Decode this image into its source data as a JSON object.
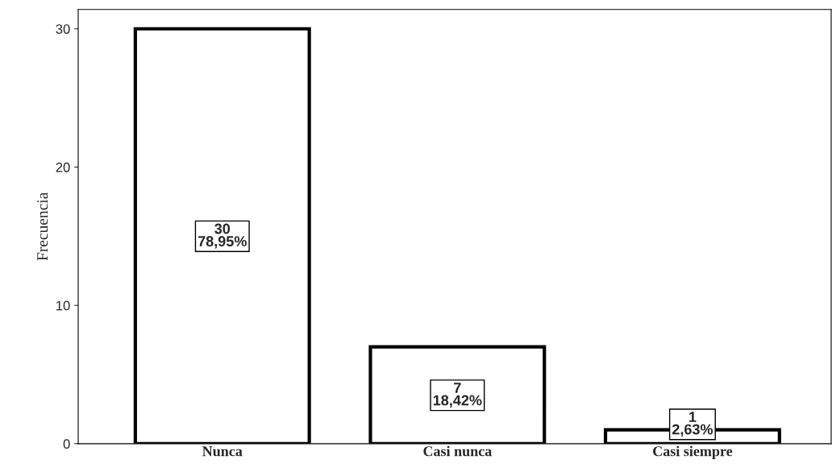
{
  "chart_data": {
    "type": "bar",
    "ylabel": "Frecuencia",
    "categories": [
      "Nunca",
      "Casi nunca",
      "Casi siempre"
    ],
    "values": [
      30,
      7,
      1
    ],
    "value_labels": [
      "30\n78,95%",
      "7\n18,42%",
      "1\n2,63%"
    ],
    "color": "#ffffff",
    "ylim": [
      0,
      31.4
    ],
    "yticks": [
      0,
      10,
      20,
      30
    ],
    "grid": false
  }
}
